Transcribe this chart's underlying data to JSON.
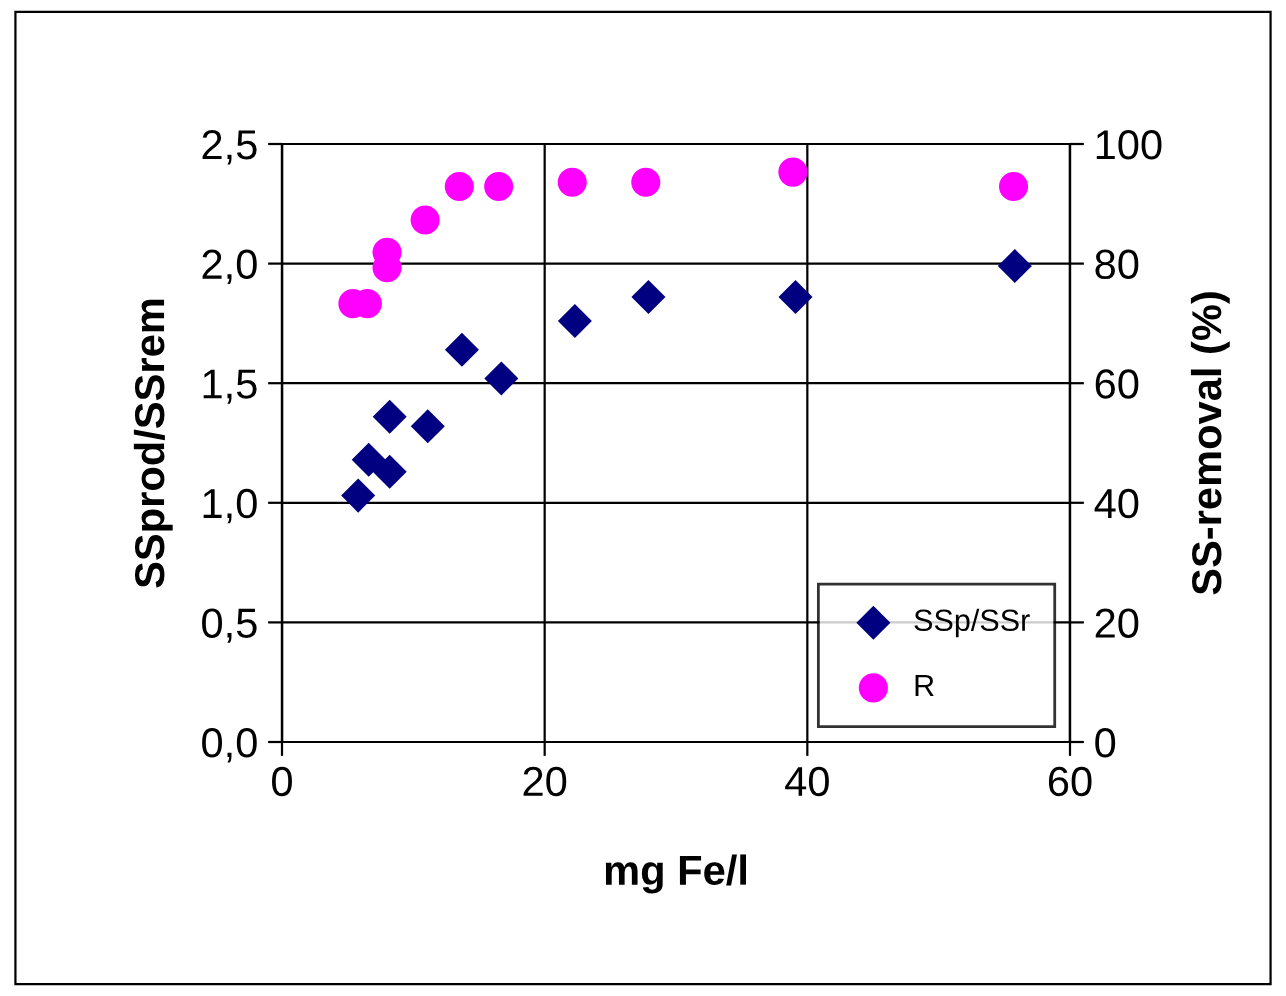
{
  "chart_data": {
    "type": "scatter",
    "xlabel": "mg Fe/l",
    "ylabel": "SSprod/SSrem",
    "y2label": "SS-removal (%)",
    "xlim": [
      0,
      60
    ],
    "xticks": [
      0,
      20,
      40,
      60
    ],
    "ylim": [
      0,
      2.5
    ],
    "yticks": [
      {
        "value": 0,
        "label": "0,0"
      },
      {
        "value": 0.5,
        "label": "0,5"
      },
      {
        "value": 1,
        "label": "1,0"
      },
      {
        "value": 1.5,
        "label": "1,5"
      },
      {
        "value": 2,
        "label": "2,0"
      },
      {
        "value": 2.5,
        "label": "2,5"
      }
    ],
    "y2lim": [
      0,
      100
    ],
    "y2ticks": [
      0,
      20,
      40,
      60,
      80,
      100
    ],
    "grid": true,
    "legend": "bottom right",
    "series": [
      {
        "name": "SSp/SSr",
        "color": "#000080",
        "marker": "diamond",
        "x": [
          5.8,
          6.6,
          8.2,
          8.2,
          11.1,
          13.7,
          16.7,
          22.3,
          27.9,
          39.1,
          55.8
        ],
        "values": [
          1.03,
          1.18,
          1.13,
          1.36,
          1.32,
          1.64,
          1.52,
          1.76,
          1.86,
          1.86,
          1.99
        ]
      },
      {
        "name": "R",
        "color": "#ff00ff",
        "marker": "circle",
        "axis": "y2",
        "x": [
          5.4,
          6.5,
          8.0,
          8.0,
          10.9,
          13.5,
          16.5,
          22.1,
          27.7,
          38.9,
          55.7
        ],
        "values": [
          73.3,
          73.3,
          79.3,
          81.9,
          87.3,
          92.9,
          92.9,
          93.6,
          93.6,
          95.3,
          92.9
        ]
      }
    ]
  }
}
